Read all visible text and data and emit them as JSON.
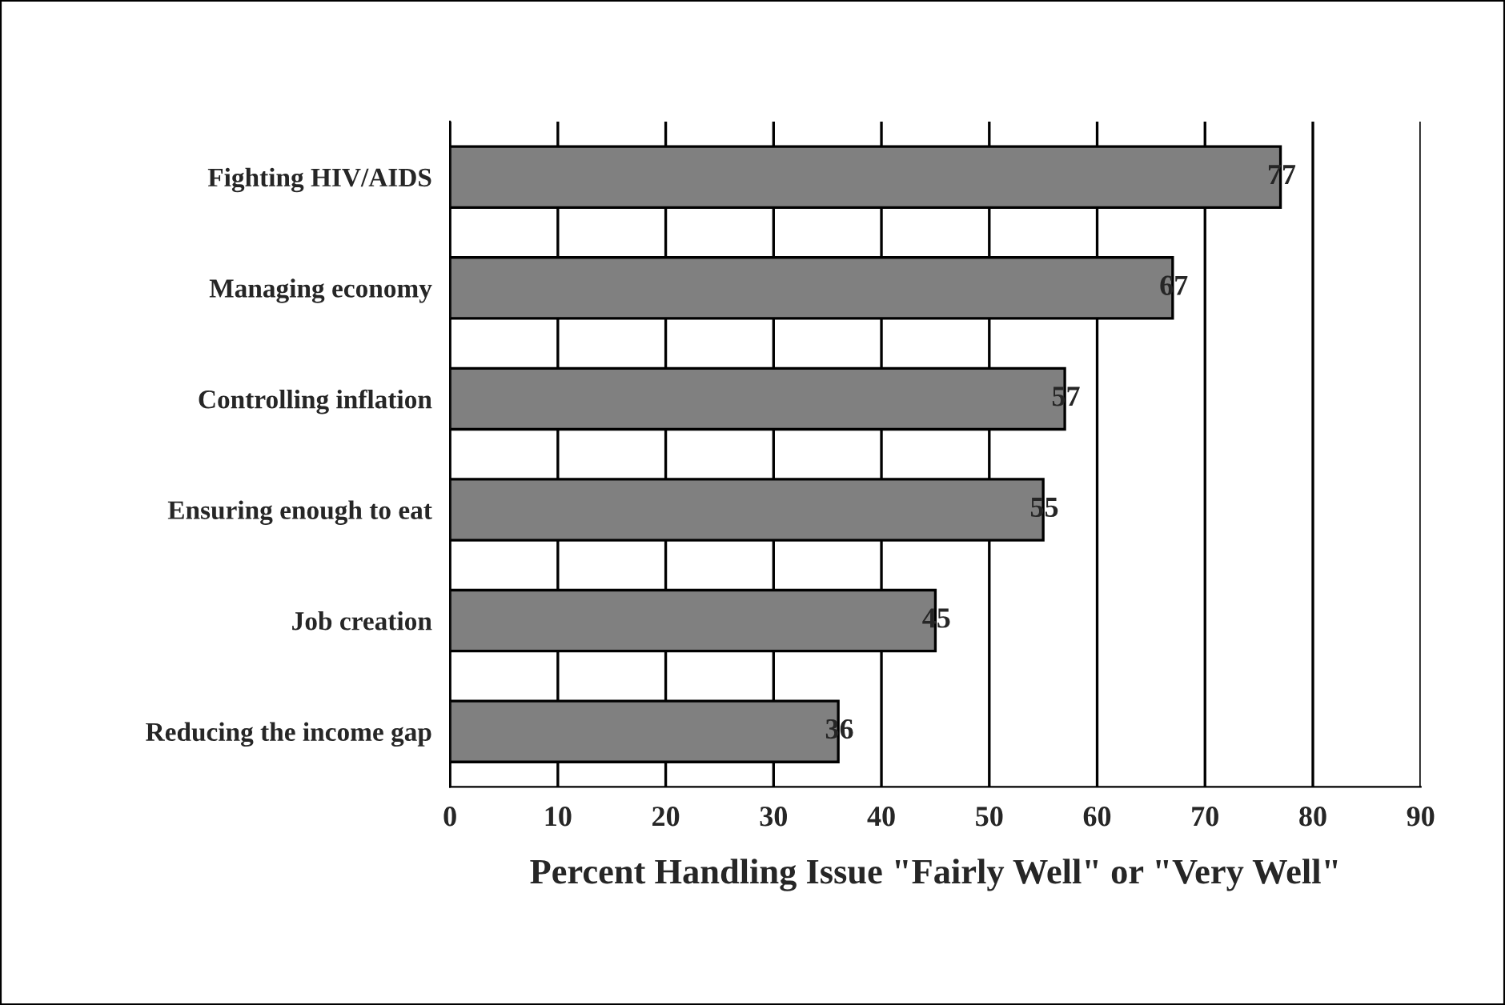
{
  "chart_data": {
    "type": "bar",
    "orientation": "horizontal",
    "xlabel": "Percent Handling Issue \"Fairly Well\" or \"Very Well\"",
    "categories": [
      "Fighting HIV/AIDS",
      "Managing economy",
      "Controlling inflation",
      "Ensuring enough to eat",
      "Job creation",
      "Reducing the income gap"
    ],
    "values": [
      77,
      67,
      57,
      55,
      45,
      36
    ],
    "color": "#808080",
    "xlim": [
      0,
      90
    ],
    "xticks": [
      0,
      10,
      20,
      30,
      40,
      50,
      60,
      70,
      80,
      90
    ],
    "grid": "x",
    "data_labels": true
  }
}
